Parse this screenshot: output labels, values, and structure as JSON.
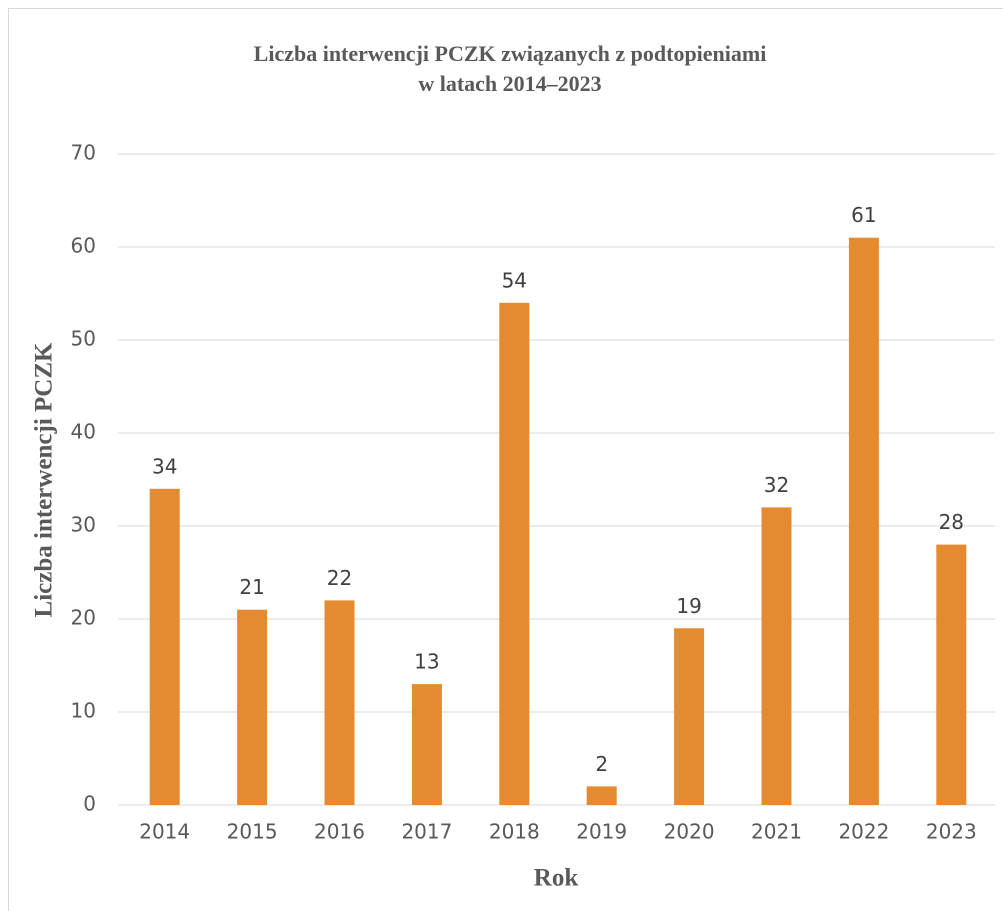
{
  "chart_data": {
    "type": "bar",
    "title": [
      "Liczba interwencji PCZK związanych z podtopieniami",
      "w latach 2014–2023"
    ],
    "x_label": "Rok",
    "y_label": "Liczba interwencji PCZK",
    "categories": [
      "2014",
      "2015",
      "2016",
      "2017",
      "2018",
      "2019",
      "2020",
      "2021",
      "2022",
      "2023"
    ],
    "values": [
      34,
      21,
      22,
      13,
      54,
      2,
      19,
      32,
      61,
      28
    ],
    "color": "#e48a31",
    "ylim": [
      0,
      70
    ],
    "yticks": [
      0,
      10,
      20,
      30,
      40,
      50,
      60,
      70
    ],
    "grid": true
  }
}
